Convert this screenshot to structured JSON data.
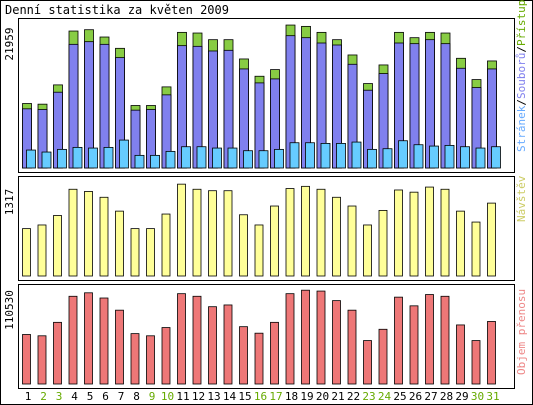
{
  "title": "Denní statistika za květen 2009",
  "colors": {
    "frame": "#000000",
    "panel_bg": "#ffffff",
    "weekday_label": "#000000",
    "weekend_label": "#66aa00",
    "hits": "#88cc44",
    "files": "#8080ee",
    "pages": "#66ccff",
    "visits": "#ffff99",
    "kbytes": "#ee7777",
    "legend_hits": "#66aa00",
    "legend_files": "#8080ee",
    "legend_pages": "#66aaff",
    "legend_sep": "#000000",
    "legend_visits": "#cccc66",
    "legend_kbytes": "#ee8888"
  },
  "legend": {
    "pages": "Stránek",
    "sep1": "/",
    "files": "Souborů",
    "sep2": "/",
    "hits": "Přístupů",
    "visits": "Návštěv",
    "kbytes": "Objem přenosu"
  },
  "chart_data": [
    {
      "type": "bar",
      "title": "",
      "ylabel": "21959",
      "ymax": 21959,
      "categories": [
        "1",
        "2",
        "3",
        "4",
        "5",
        "6",
        "7",
        "8",
        "9",
        "10",
        "11",
        "12",
        "13",
        "14",
        "15",
        "16",
        "17",
        "18",
        "19",
        "20",
        "21",
        "22",
        "23",
        "24",
        "25",
        "26",
        "27",
        "28",
        "29",
        "30",
        "31"
      ],
      "weekend": [
        "2",
        "3",
        "9",
        "10",
        "16",
        "17",
        "23",
        "24",
        "30",
        "31"
      ],
      "series": [
        {
          "name": "Přístupů",
          "values": [
            9700,
            9600,
            12500,
            20600,
            20800,
            19700,
            18000,
            9400,
            9400,
            12200,
            20400,
            20300,
            19300,
            19300,
            16400,
            13800,
            14800,
            21500,
            21300,
            20400,
            19300,
            17000,
            12700,
            15500,
            20400,
            19600,
            20400,
            20300,
            16500,
            13300,
            16100
          ]
        },
        {
          "name": "Souborů",
          "values": [
            8900,
            8800,
            11400,
            18600,
            19000,
            18600,
            16600,
            8700,
            8800,
            11000,
            18400,
            18300,
            17600,
            17700,
            14900,
            12800,
            13400,
            19900,
            19600,
            18800,
            18500,
            15600,
            11700,
            14200,
            18800,
            18700,
            19300,
            18700,
            15000,
            12100,
            14900
          ]
        },
        {
          "name": "Stránek",
          "values": [
            2700,
            2400,
            2800,
            3100,
            3000,
            3100,
            4200,
            1900,
            1900,
            2500,
            3200,
            3200,
            3000,
            3000,
            2600,
            2600,
            2800,
            3800,
            3800,
            3700,
            3700,
            3900,
            2800,
            2900,
            4100,
            3500,
            3300,
            3400,
            3200,
            3000,
            3200
          ]
        }
      ]
    },
    {
      "type": "bar",
      "title": "",
      "ylabel": "1317",
      "ymax": 1317,
      "categories": [
        "1",
        "2",
        "3",
        "4",
        "5",
        "6",
        "7",
        "8",
        "9",
        "10",
        "11",
        "12",
        "13",
        "14",
        "15",
        "16",
        "17",
        "18",
        "19",
        "20",
        "21",
        "22",
        "23",
        "24",
        "25",
        "26",
        "27",
        "28",
        "29",
        "30",
        "31"
      ],
      "series": [
        {
          "name": "Návštěv",
          "values": [
            650,
            700,
            830,
            1190,
            1160,
            1080,
            890,
            650,
            650,
            850,
            1260,
            1190,
            1170,
            1170,
            840,
            700,
            960,
            1200,
            1230,
            1190,
            1080,
            960,
            700,
            900,
            1180,
            1150,
            1220,
            1190,
            890,
            740,
            1000
          ]
        }
      ]
    },
    {
      "type": "bar",
      "title": "",
      "ylabel": "110530",
      "ymax": 110530,
      "categories": [
        "1",
        "2",
        "3",
        "4",
        "5",
        "6",
        "7",
        "8",
        "9",
        "10",
        "11",
        "12",
        "13",
        "14",
        "15",
        "16",
        "17",
        "18",
        "19",
        "20",
        "21",
        "22",
        "23",
        "24",
        "25",
        "26",
        "27",
        "28",
        "29",
        "30",
        "31"
      ],
      "series": [
        {
          "name": "Objem přenosu",
          "values": [
            57000,
            55500,
            71000,
            101000,
            105000,
            99000,
            85000,
            58000,
            55500,
            65000,
            104000,
            101000,
            89000,
            91000,
            66000,
            58500,
            71000,
            104000,
            108000,
            107000,
            96000,
            85000,
            50000,
            63000,
            100000,
            90000,
            103000,
            101000,
            68000,
            50000,
            72000
          ]
        }
      ]
    }
  ]
}
